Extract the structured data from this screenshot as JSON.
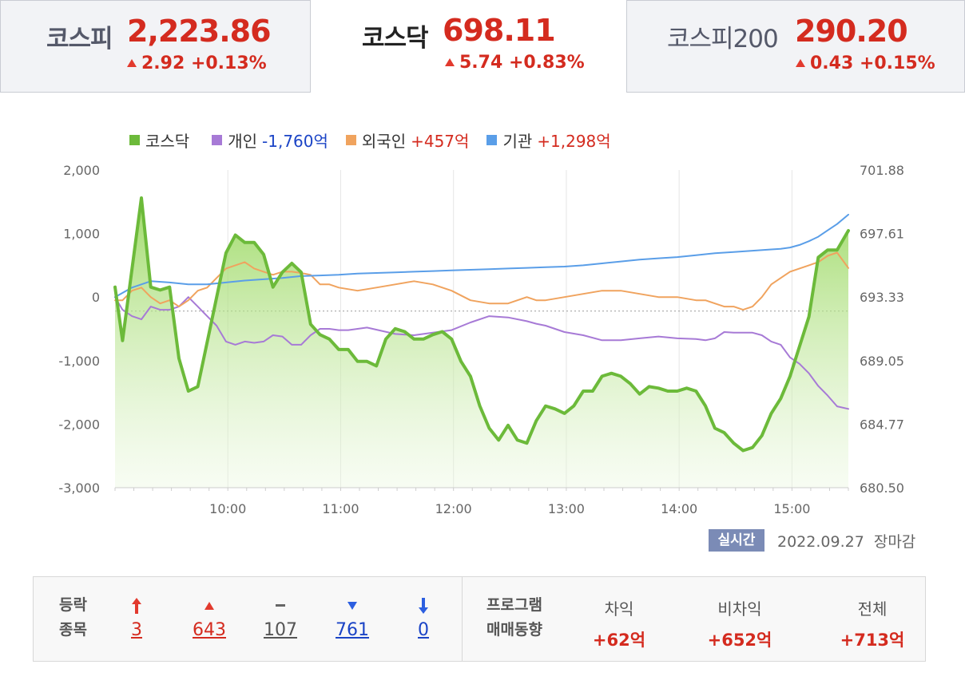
{
  "tabs": [
    {
      "name": "코스피",
      "value": "2,223.86",
      "change": "2.92 +0.13%",
      "active": false
    },
    {
      "name": "코스닥",
      "value": "698.11",
      "change": "5.74 +0.83%",
      "active": true
    },
    {
      "name": "코스피200",
      "value": "290.20",
      "change": "0.43 +0.15%",
      "active": false
    }
  ],
  "legend": [
    {
      "name": "코스닥",
      "value": "",
      "color": "#6cba3a"
    },
    {
      "name": "개인",
      "value": "-1,760억",
      "color": "#a77ad6"
    },
    {
      "name": "외국인",
      "value": "+457억",
      "color": "#f0a35e"
    },
    {
      "name": "기관",
      "value": "+1,298억",
      "color": "#5a9ee8"
    }
  ],
  "chart_data": {
    "type": "line",
    "x_range": [
      "09:00",
      "15:30"
    ],
    "x_ticks": [
      "10:00",
      "11:00",
      "12:00",
      "13:00",
      "14:00",
      "15:00"
    ],
    "y_left_ticks": [
      "2,000",
      "1,000",
      "0",
      "-1,000",
      "-2,000",
      "-3,000"
    ],
    "y_left_range": [
      -3000,
      2000
    ],
    "y_right_ticks": [
      "701.88",
      "697.61",
      "693.33",
      "689.05",
      "684.77",
      "680.50"
    ],
    "y_right_range": [
      680.5,
      701.88
    ],
    "reference_line_left": -220,
    "grid": "vertical",
    "series": [
      {
        "name": "코스닥",
        "axis": "right",
        "color": "#6cba3a",
        "fill": true,
        "x": [
          "09:00",
          "09:04",
          "09:14",
          "09:19",
          "09:24",
          "09:29",
          "09:34",
          "09:39",
          "09:44",
          "09:59",
          "10:04",
          "10:09",
          "10:14",
          "10:19",
          "10:24",
          "10:29",
          "10:34",
          "10:39",
          "10:44",
          "10:49",
          "10:54",
          "10:59",
          "11:04",
          "11:09",
          "11:14",
          "11:19",
          "11:24",
          "11:29",
          "11:34",
          "11:39",
          "11:44",
          "11:49",
          "11:54",
          "11:59",
          "12:04",
          "12:09",
          "12:14",
          "12:19",
          "12:24",
          "12:29",
          "12:34",
          "12:39",
          "12:44",
          "12:49",
          "12:54",
          "12:59",
          "13:04",
          "13:09",
          "13:14",
          "13:19",
          "13:24",
          "13:29",
          "13:34",
          "13:39",
          "13:44",
          "13:49",
          "13:54",
          "13:59",
          "14:04",
          "14:09",
          "14:14",
          "14:19",
          "14:24",
          "14:29",
          "14:34",
          "14:39",
          "14:44",
          "14:49",
          "14:54",
          "14:59",
          "15:04",
          "15:09",
          "15:14",
          "15:19",
          "15:24",
          "15:30"
        ],
        "values": [
          694.0,
          690.4,
          700.0,
          694.0,
          693.8,
          694.0,
          689.2,
          687.0,
          687.3,
          696.3,
          697.5,
          697.0,
          697.0,
          696.2,
          694.0,
          695.0,
          695.6,
          695.0,
          691.5,
          690.8,
          690.5,
          689.8,
          689.8,
          689.0,
          689.0,
          688.7,
          690.5,
          691.2,
          691.0,
          690.5,
          690.5,
          690.8,
          691.0,
          690.5,
          689.0,
          688.0,
          686.0,
          684.5,
          683.7,
          684.7,
          683.7,
          683.5,
          685.0,
          686.0,
          685.8,
          685.5,
          686.0,
          687.0,
          687.0,
          688.0,
          688.2,
          688.0,
          687.5,
          686.8,
          687.3,
          687.2,
          687.0,
          687.0,
          687.2,
          687.0,
          686.0,
          684.5,
          684.2,
          683.5,
          683.0,
          683.2,
          684.0,
          685.5,
          686.5,
          688.0,
          690.0,
          692.0,
          696.0,
          696.5,
          696.5,
          697.8
        ]
      },
      {
        "name": "개인",
        "axis": "left",
        "color": "#a77ad6",
        "x": [
          "09:00",
          "09:04",
          "09:09",
          "09:14",
          "09:19",
          "09:24",
          "09:29",
          "09:34",
          "09:39",
          "09:44",
          "09:49",
          "09:54",
          "09:59",
          "10:04",
          "10:09",
          "10:14",
          "10:19",
          "10:24",
          "10:29",
          "10:34",
          "10:39",
          "10:44",
          "10:49",
          "10:54",
          "10:59",
          "11:04",
          "11:14",
          "11:29",
          "11:39",
          "11:49",
          "11:59",
          "12:09",
          "12:19",
          "12:29",
          "12:39",
          "12:44",
          "12:49",
          "12:59",
          "13:09",
          "13:19",
          "13:29",
          "13:39",
          "13:49",
          "13:59",
          "14:09",
          "14:14",
          "14:19",
          "14:24",
          "14:29",
          "14:34",
          "14:39",
          "14:44",
          "14:49",
          "14:54",
          "14:59",
          "15:04",
          "15:09",
          "15:14",
          "15:19",
          "15:24",
          "15:30"
        ],
        "values": [
          0,
          -200,
          -300,
          -350,
          -150,
          -200,
          -200,
          -150,
          0,
          -150,
          -300,
          -450,
          -700,
          -750,
          -700,
          -720,
          -700,
          -600,
          -620,
          -750,
          -750,
          -600,
          -500,
          -500,
          -520,
          -520,
          -480,
          -580,
          -600,
          -560,
          -520,
          -400,
          -300,
          -320,
          -380,
          -420,
          -450,
          -550,
          -600,
          -680,
          -680,
          -650,
          -620,
          -650,
          -660,
          -680,
          -650,
          -550,
          -560,
          -560,
          -560,
          -600,
          -700,
          -750,
          -950,
          -1050,
          -1200,
          -1400,
          -1550,
          -1720,
          -1760
        ]
      },
      {
        "name": "외국인",
        "axis": "left",
        "color": "#f0a35e",
        "x": [
          "09:00",
          "09:04",
          "09:09",
          "09:14",
          "09:19",
          "09:24",
          "09:29",
          "09:34",
          "09:39",
          "09:44",
          "09:49",
          "09:54",
          "09:59",
          "10:04",
          "10:09",
          "10:14",
          "10:19",
          "10:24",
          "10:29",
          "10:34",
          "10:39",
          "10:44",
          "10:49",
          "10:54",
          "10:59",
          "11:09",
          "11:19",
          "11:29",
          "11:39",
          "11:49",
          "11:59",
          "12:09",
          "12:19",
          "12:29",
          "12:39",
          "12:44",
          "12:49",
          "12:59",
          "13:09",
          "13:19",
          "13:29",
          "13:39",
          "13:49",
          "13:59",
          "14:09",
          "14:14",
          "14:19",
          "14:24",
          "14:29",
          "14:34",
          "14:39",
          "14:44",
          "14:49",
          "14:54",
          "14:59",
          "15:04",
          "15:09",
          "15:14",
          "15:19",
          "15:24",
          "15:30"
        ],
        "values": [
          -50,
          -50,
          100,
          150,
          0,
          -100,
          -50,
          -150,
          -50,
          100,
          150,
          300,
          450,
          500,
          550,
          450,
          400,
          350,
          400,
          400,
          380,
          350,
          200,
          200,
          150,
          100,
          150,
          200,
          250,
          200,
          100,
          -50,
          -100,
          -100,
          0,
          -50,
          -50,
          0,
          50,
          100,
          100,
          50,
          0,
          0,
          -50,
          -50,
          -100,
          -150,
          -150,
          -200,
          -150,
          0,
          200,
          300,
          400,
          450,
          500,
          550,
          650,
          700,
          457
        ]
      },
      {
        "name": "기관",
        "axis": "left",
        "color": "#5a9ee8",
        "x": [
          "09:00",
          "09:09",
          "09:19",
          "09:29",
          "09:39",
          "09:49",
          "09:59",
          "10:09",
          "10:19",
          "10:29",
          "10:39",
          "10:49",
          "10:59",
          "11:09",
          "11:19",
          "11:29",
          "11:39",
          "11:49",
          "11:59",
          "12:09",
          "12:19",
          "12:29",
          "12:39",
          "12:49",
          "12:59",
          "13:09",
          "13:19",
          "13:29",
          "13:39",
          "13:49",
          "13:59",
          "14:09",
          "14:19",
          "14:29",
          "14:39",
          "14:49",
          "14:54",
          "14:59",
          "15:04",
          "15:09",
          "15:14",
          "15:19",
          "15:24",
          "15:30"
        ],
        "values": [
          0,
          150,
          250,
          230,
          200,
          200,
          230,
          260,
          280,
          300,
          330,
          340,
          350,
          370,
          380,
          390,
          400,
          410,
          420,
          430,
          440,
          450,
          460,
          470,
          480,
          500,
          530,
          560,
          590,
          610,
          630,
          660,
          690,
          710,
          730,
          750,
          760,
          780,
          820,
          880,
          950,
          1050,
          1150,
          1298
        ]
      }
    ]
  },
  "status": {
    "realtime_label": "실시간",
    "date": "2022.09.27",
    "session": "장마감"
  },
  "breadth": {
    "label_line1": "등락",
    "label_line2": "종목",
    "items": [
      {
        "icon": "upper-limit-arrow-icon",
        "value": "3",
        "color": "#d42b1f"
      },
      {
        "icon": "rise-triangle-icon",
        "value": "643",
        "color": "#d42b1f"
      },
      {
        "icon": "unchanged-dash-icon",
        "value": "107",
        "color": "#555555"
      },
      {
        "icon": "fall-triangle-icon",
        "value": "761",
        "color": "#1b44c6"
      },
      {
        "icon": "lower-limit-arrow-icon",
        "value": "0",
        "color": "#1b44c6"
      }
    ]
  },
  "program": {
    "label_line1": "프로그램",
    "label_line2": "매매동향",
    "items": [
      {
        "head": "차익",
        "value": "+62억"
      },
      {
        "head": "비차익",
        "value": "+652억"
      },
      {
        "head": "전체",
        "value": "+713억"
      }
    ]
  }
}
